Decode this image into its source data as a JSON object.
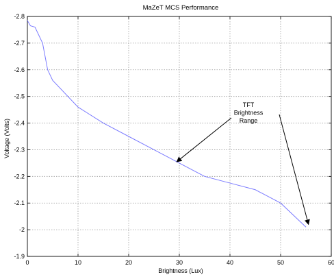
{
  "chart_data": {
    "type": "line",
    "title": "MaZeT MCS Performance",
    "xlabel": "Brightness (Lux)",
    "ylabel": "Voltage (Volts)",
    "xlim": [
      0,
      60
    ],
    "ylim": [
      -2.8,
      -1.9
    ],
    "y_axis_reversed": true,
    "grid": true,
    "x_ticks": [
      "0",
      "10",
      "20",
      "30",
      "40",
      "50",
      "60"
    ],
    "y_ticks": [
      "-2.8",
      "-2.7",
      "-2.6",
      "-2.5",
      "-2.4",
      "-2.3",
      "-2.2",
      "-2.1",
      "-2",
      "-1.9"
    ],
    "series": [
      {
        "color": "#7b7bff",
        "x": [
          0,
          0.6,
          1.5,
          3,
          4,
          5,
          10,
          15,
          20,
          25,
          30,
          35,
          40,
          45,
          50,
          55
        ],
        "y": [
          -2.785,
          -2.765,
          -2.76,
          -2.7,
          -2.6,
          -2.56,
          -2.46,
          -2.4,
          -2.35,
          -2.3,
          -2.25,
          -2.2,
          -2.175,
          -2.15,
          -2.1,
          -2.01
        ]
      }
    ],
    "annotations": {
      "text_lines": [
        "TFT",
        "Brightness",
        "Range"
      ],
      "arrows_to": [
        {
          "x": 29.5,
          "y": -2.255
        },
        {
          "x": 55.5,
          "y": -2.02
        }
      ]
    }
  }
}
